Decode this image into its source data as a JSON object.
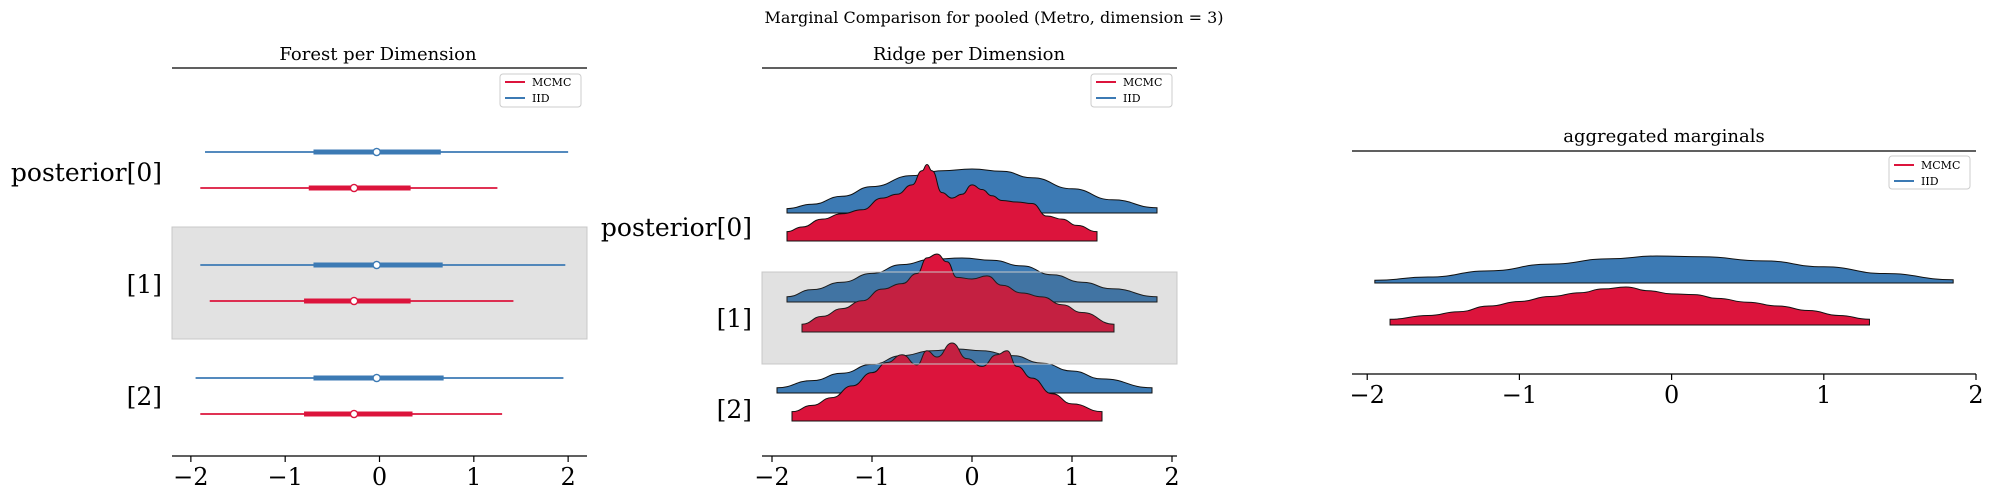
{
  "suptitle": "Marginal Comparison for pooled (Metro, dimension = 3)",
  "colors": {
    "mcmc": "#DC143C",
    "iid": "#3C7AB4",
    "shade": "#E2E2E2"
  },
  "legend": {
    "entries": [
      "MCMC",
      "IID"
    ]
  },
  "chart_data": [
    {
      "type": "forest",
      "title": "Forest per Dimension",
      "y_labels": [
        "posterior[0]",
        "[1]",
        "[2]"
      ],
      "x_ticks": [
        -2,
        -1,
        0,
        1,
        2
      ],
      "xlim": [
        -2.2,
        2.2
      ],
      "legend": "top-right",
      "shaded_rows": [
        1
      ],
      "rows": [
        {
          "label": "posterior[0]",
          "IID": {
            "hdi": [
              -1.85,
              2.0
            ],
            "iqr": [
              -0.7,
              0.65
            ],
            "median": -0.03
          },
          "MCMC": {
            "hdi": [
              -1.9,
              1.25
            ],
            "iqr": [
              -0.75,
              0.33
            ],
            "median": -0.27
          }
        },
        {
          "label": "[1]",
          "IID": {
            "hdi": [
              -1.9,
              1.97
            ],
            "iqr": [
              -0.7,
              0.67
            ],
            "median": -0.03
          },
          "MCMC": {
            "hdi": [
              -1.8,
              1.42
            ],
            "iqr": [
              -0.8,
              0.33
            ],
            "median": -0.27
          }
        },
        {
          "label": "[2]",
          "IID": {
            "hdi": [
              -1.95,
              1.95
            ],
            "iqr": [
              -0.7,
              0.68
            ],
            "median": -0.03
          },
          "MCMC": {
            "hdi": [
              -1.9,
              1.3
            ],
            "iqr": [
              -0.8,
              0.35
            ],
            "median": -0.27
          }
        }
      ]
    },
    {
      "type": "ridge",
      "title": "Ridge per Dimension",
      "y_labels": [
        "posterior[0]",
        "[1]",
        "[2]"
      ],
      "x_ticks": [
        -2,
        -1,
        0,
        1,
        2
      ],
      "xlim": [
        -2.1,
        2.05
      ],
      "legend": "top-right",
      "shaded_rows": [
        1
      ],
      "rows": [
        {
          "label": "posterior[0]",
          "IID": {
            "x": [
              -1.85,
              -1.6,
              -1.3,
              -1.0,
              -0.6,
              -0.3,
              0.0,
              0.3,
              0.6,
              1.0,
              1.4,
              1.85
            ],
            "density": [
              0.1,
              0.2,
              0.38,
              0.6,
              0.85,
              0.96,
              1.0,
              0.95,
              0.8,
              0.55,
              0.3,
              0.12
            ]
          },
          "MCMC": {
            "x": [
              -1.85,
              -1.7,
              -1.5,
              -1.3,
              -1.1,
              -0.9,
              -0.75,
              -0.6,
              -0.5,
              -0.45,
              -0.4,
              -0.3,
              -0.2,
              -0.1,
              0.0,
              0.1,
              0.2,
              0.3,
              0.45,
              0.6,
              0.75,
              0.9,
              1.05,
              1.25
            ],
            "density": [
              0.12,
              0.18,
              0.28,
              0.35,
              0.4,
              0.55,
              0.6,
              0.72,
              0.9,
              0.98,
              0.9,
              0.62,
              0.55,
              0.6,
              0.72,
              0.66,
              0.58,
              0.52,
              0.5,
              0.48,
              0.32,
              0.28,
              0.2,
              0.12
            ]
          }
        },
        {
          "label": "[1]",
          "IID": {
            "x": [
              -1.85,
              -1.6,
              -1.3,
              -1.0,
              -0.7,
              -0.4,
              -0.1,
              0.2,
              0.5,
              0.8,
              1.1,
              1.4,
              1.85
            ],
            "density": [
              0.12,
              0.28,
              0.45,
              0.65,
              0.85,
              0.97,
              1.0,
              0.95,
              0.82,
              0.62,
              0.45,
              0.3,
              0.12
            ]
          },
          "MCMC": {
            "x": [
              -1.7,
              -1.5,
              -1.3,
              -1.1,
              -0.9,
              -0.7,
              -0.55,
              -0.45,
              -0.35,
              -0.25,
              -0.15,
              0.0,
              0.15,
              0.3,
              0.5,
              0.7,
              0.9,
              1.1,
              1.42
            ],
            "density": [
              0.1,
              0.2,
              0.3,
              0.4,
              0.55,
              0.62,
              0.75,
              0.95,
              1.0,
              0.9,
              0.7,
              0.68,
              0.72,
              0.6,
              0.5,
              0.45,
              0.35,
              0.25,
              0.1
            ]
          }
        },
        {
          "label": "[2]",
          "IID": {
            "x": [
              -1.95,
              -1.6,
              -1.3,
              -1.0,
              -0.7,
              -0.4,
              -0.15,
              0.1,
              0.4,
              0.7,
              1.0,
              1.3,
              1.8
            ],
            "density": [
              0.12,
              0.28,
              0.45,
              0.65,
              0.85,
              0.96,
              1.0,
              0.96,
              0.85,
              0.68,
              0.5,
              0.32,
              0.12
            ]
          },
          "MCMC": {
            "x": [
              -1.8,
              -1.6,
              -1.4,
              -1.2,
              -1.0,
              -0.85,
              -0.7,
              -0.55,
              -0.45,
              -0.35,
              -0.2,
              -0.05,
              0.1,
              0.25,
              0.35,
              0.45,
              0.6,
              0.8,
              1.0,
              1.3
            ],
            "density": [
              0.12,
              0.2,
              0.3,
              0.45,
              0.62,
              0.75,
              0.85,
              0.72,
              0.9,
              0.82,
              1.0,
              0.8,
              0.7,
              0.85,
              0.9,
              0.7,
              0.55,
              0.35,
              0.22,
              0.12
            ]
          }
        }
      ]
    },
    {
      "type": "ridge",
      "title": "aggregated marginals",
      "x_ticks": [
        -2,
        -1,
        0,
        1,
        2
      ],
      "xlim": [
        -2.1,
        2.0
      ],
      "legend": "top-right",
      "rows": [
        {
          "IID": {
            "x": [
              -1.95,
              -1.6,
              -1.2,
              -0.8,
              -0.4,
              -0.1,
              0.2,
              0.6,
              1.0,
              1.4,
              1.85
            ],
            "density": [
              0.1,
              0.22,
              0.45,
              0.7,
              0.9,
              1.0,
              0.97,
              0.82,
              0.6,
              0.35,
              0.12
            ]
          },
          "MCMC": {
            "x": [
              -1.85,
              -1.6,
              -1.4,
              -1.2,
              -1.0,
              -0.8,
              -0.6,
              -0.45,
              -0.3,
              -0.15,
              0.0,
              0.15,
              0.3,
              0.5,
              0.7,
              0.9,
              1.1,
              1.3
            ],
            "density": [
              0.15,
              0.25,
              0.35,
              0.5,
              0.62,
              0.75,
              0.85,
              0.95,
              1.0,
              0.9,
              0.82,
              0.8,
              0.7,
              0.6,
              0.5,
              0.38,
              0.25,
              0.15
            ]
          }
        }
      ]
    }
  ]
}
